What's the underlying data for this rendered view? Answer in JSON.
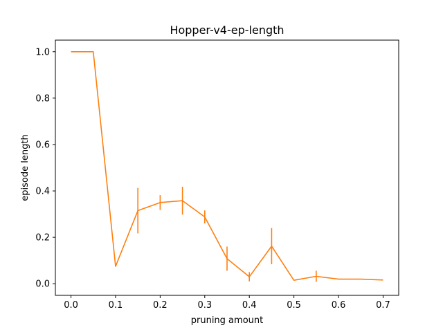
{
  "chart_data": {
    "type": "line",
    "title": "Hopper-v4-ep-length",
    "xlabel": "pruning amount",
    "ylabel": "episode length",
    "xlim": [
      -0.035,
      0.735
    ],
    "ylim": [
      -0.05,
      1.05
    ],
    "xticks": [
      0.0,
      0.1,
      0.2,
      0.3,
      0.4,
      0.5,
      0.6,
      0.7
    ],
    "xtick_labels": [
      "0.0",
      "0.1",
      "0.2",
      "0.3",
      "0.4",
      "0.5",
      "0.6",
      "0.7"
    ],
    "yticks": [
      0.0,
      0.2,
      0.4,
      0.6,
      0.8,
      1.0
    ],
    "ytick_labels": [
      "0.0",
      "0.2",
      "0.4",
      "0.6",
      "0.8",
      "1.0"
    ],
    "grid": false,
    "legend": "none",
    "series": [
      {
        "color": "#ff7f0e",
        "x": [
          0.0,
          0.05,
          0.1,
          0.15,
          0.2,
          0.25,
          0.3,
          0.35,
          0.4,
          0.45,
          0.5,
          0.55,
          0.6,
          0.65,
          0.7
        ],
        "y": [
          1.0,
          1.0,
          0.075,
          0.315,
          0.35,
          0.358,
          0.288,
          0.108,
          0.03,
          0.162,
          0.015,
          0.032,
          0.02,
          0.02,
          0.016
        ],
        "yerr": [
          0.0,
          0.0,
          0.0,
          0.098,
          0.032,
          0.06,
          0.028,
          0.052,
          0.02,
          0.078,
          0.0,
          0.024,
          0.0,
          0.0,
          0.0
        ]
      }
    ]
  }
}
